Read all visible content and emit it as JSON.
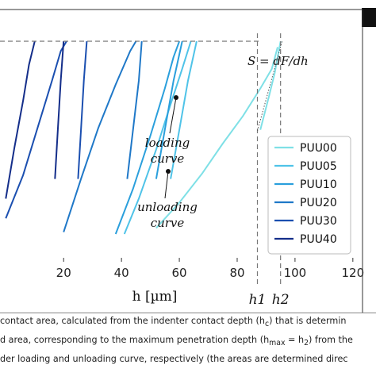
{
  "chart_data": {
    "type": "line",
    "xlabel": "h [µm]",
    "ylabel": "",
    "xlim": [
      -2,
      128
    ],
    "ylim": [
      0,
      1
    ],
    "x_ticks": [
      20,
      40,
      60,
      80,
      100,
      120
    ],
    "grid": false,
    "legend_position": "right",
    "series": [
      {
        "name": "PUU00",
        "color": "#7fe0e6",
        "loading": [
          [
            52,
            0.05
          ],
          [
            60,
            0.18
          ],
          [
            68,
            0.33
          ],
          [
            75,
            0.48
          ],
          [
            82,
            0.62
          ],
          [
            88,
            0.76
          ],
          [
            92,
            0.86
          ],
          [
            94,
            0.97
          ]
        ],
        "unloading": [
          [
            88,
            0.55
          ],
          [
            91,
            0.72
          ],
          [
            93,
            0.84
          ],
          [
            95,
            1.0
          ]
        ]
      },
      {
        "name": "PUU05",
        "color": "#4fc3e8",
        "loading": [
          [
            41,
            0.02
          ],
          [
            46,
            0.2
          ],
          [
            52,
            0.45
          ],
          [
            57,
            0.68
          ],
          [
            61,
            0.86
          ],
          [
            64,
            1.0
          ]
        ],
        "unloading": [
          [
            57,
            0.3
          ],
          [
            60,
            0.55
          ],
          [
            63,
            0.8
          ],
          [
            66,
            1.0
          ]
        ]
      },
      {
        "name": "PUU10",
        "color": "#2a9fdc",
        "loading": [
          [
            38,
            0.02
          ],
          [
            44,
            0.25
          ],
          [
            50,
            0.52
          ],
          [
            55,
            0.76
          ],
          [
            58,
            0.92
          ],
          [
            60,
            1.0
          ]
        ],
        "unloading": [
          [
            52,
            0.3
          ],
          [
            55,
            0.55
          ],
          [
            58,
            0.8
          ],
          [
            61,
            1.0
          ]
        ]
      },
      {
        "name": "PUU20",
        "color": "#1f78c8",
        "loading": [
          [
            20,
            0.03
          ],
          [
            26,
            0.3
          ],
          [
            32,
            0.56
          ],
          [
            38,
            0.78
          ],
          [
            43,
            0.95
          ],
          [
            45,
            1.0
          ]
        ],
        "unloading": [
          [
            42,
            0.3
          ],
          [
            44,
            0.55
          ],
          [
            46,
            0.8
          ],
          [
            47,
            1.0
          ]
        ]
      },
      {
        "name": "PUU30",
        "color": "#1b4fb0",
        "loading": [
          [
            0,
            0.1
          ],
          [
            6,
            0.32
          ],
          [
            11,
            0.56
          ],
          [
            16,
            0.8
          ],
          [
            19,
            0.95
          ],
          [
            21,
            1.0
          ]
        ],
        "unloading": [
          [
            25,
            0.3
          ],
          [
            26,
            0.55
          ],
          [
            27,
            0.8
          ],
          [
            28,
            1.0
          ]
        ]
      },
      {
        "name": "PUU40",
        "color": "#142e8a",
        "loading": [
          [
            0,
            0.2
          ],
          [
            3,
            0.46
          ],
          [
            6,
            0.7
          ],
          [
            8,
            0.88
          ],
          [
            10,
            1.0
          ]
        ],
        "unloading": [
          [
            17,
            0.3
          ],
          [
            18,
            0.55
          ],
          [
            19,
            0.8
          ],
          [
            20,
            1.0
          ]
        ]
      }
    ],
    "reference_lines": {
      "fmax_y": 1.0,
      "h1_x": 87,
      "h2_x": 95,
      "h1_label": "h1",
      "h2_label": "h2"
    },
    "annotations": {
      "formula": "S = dF/dh",
      "loading": [
        "loading",
        "curve"
      ],
      "unloading": [
        "unloading",
        "curve"
      ]
    }
  },
  "caption": {
    "line1": " contact area, calculated from the indenter contact depth (h",
    "line1_sub": "c",
    "line1_tail": ") that is determin",
    "line2": "d area, corresponding to the maximum penetration depth (h",
    "line2_sub": "max",
    "line2_tail": " = h",
    "line2_sub2": "2",
    "line2_end": ") from the",
    "line3": "der loading and unloading curve, respectively (the areas are determined direc"
  }
}
